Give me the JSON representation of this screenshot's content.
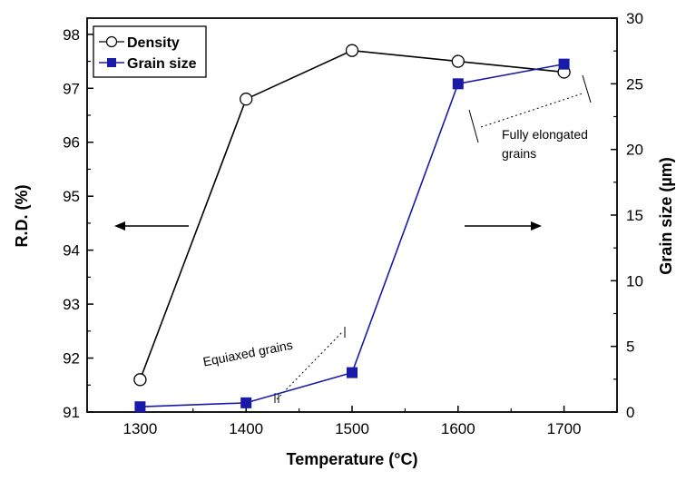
{
  "chart_data": {
    "type": "line",
    "xlabel": "Temperature (°C)",
    "ylabel_left": "R.D. (%)",
    "ylabel_right": "Grain size (µm)",
    "xlim": [
      1250,
      1750
    ],
    "xticks": [
      1300,
      1400,
      1500,
      1600,
      1700
    ],
    "ylim_left": [
      91,
      98.3
    ],
    "yticks_left": [
      91,
      92,
      93,
      94,
      95,
      96,
      97,
      98
    ],
    "ylim_right": [
      0,
      30
    ],
    "yticks_right": [
      0,
      5,
      10,
      15,
      20,
      25,
      30
    ],
    "x": [
      1300,
      1400,
      1500,
      1600,
      1700
    ],
    "grid": false,
    "legend_position": "top-left",
    "series": [
      {
        "name": "Density",
        "axis": "left",
        "marker": "open-circle",
        "color": "#000000",
        "values": [
          91.6,
          96.8,
          97.7,
          97.5,
          97.3
        ]
      },
      {
        "name": "Grain size",
        "axis": "right",
        "marker": "filled-square",
        "color": "#1a1aa8",
        "values": [
          0.4,
          0.7,
          3.0,
          25.0,
          26.5
        ]
      }
    ],
    "annotations": [
      {
        "text": "Equiaxed grains"
      },
      {
        "text_lines": [
          "Fully elongated",
          "grains"
        ]
      }
    ]
  }
}
